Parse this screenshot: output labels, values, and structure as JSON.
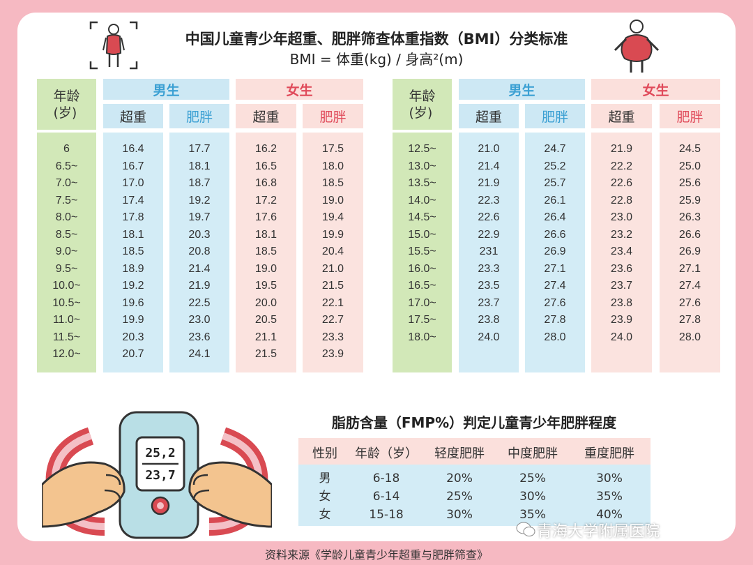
{
  "title": "中国儿童青少年超重、肥胖筛查体重指数（BMI）分类标准",
  "formula": "BMI = 体重(kg) / 身高²(m)",
  "left_table": {
    "age_header": "年龄\n(岁)",
    "groups": [
      "男生",
      "女生"
    ],
    "subs": [
      "超重",
      "肥胖",
      "超重",
      "肥胖"
    ],
    "rows": [
      [
        "6",
        "16.4",
        "17.7",
        "16.2",
        "17.5"
      ],
      [
        "6.5~",
        "16.7",
        "18.1",
        "16.5",
        "18.0"
      ],
      [
        "7.0~",
        "17.0",
        "18.7",
        "16.8",
        "18.5"
      ],
      [
        "7.5~",
        "17.4",
        "19.2",
        "17.2",
        "19.0"
      ],
      [
        "8.0~",
        "17.8",
        "19.7",
        "17.6",
        "19.4"
      ],
      [
        "8.5~",
        "18.1",
        "20.3",
        "18.1",
        "19.9"
      ],
      [
        "9.0~",
        "18.5",
        "20.8",
        "18.5",
        "20.4"
      ],
      [
        "9.5~",
        "18.9",
        "21.4",
        "19.0",
        "21.0"
      ],
      [
        "10.0~",
        "19.2",
        "21.9",
        "19.5",
        "21.5"
      ],
      [
        "10.5~",
        "19.6",
        "22.5",
        "20.0",
        "22.1"
      ],
      [
        "11.0~",
        "19.9",
        "23.0",
        "20.5",
        "22.7"
      ],
      [
        "11.5~",
        "20.3",
        "23.6",
        "21.1",
        "23.3"
      ],
      [
        "12.0~",
        "20.7",
        "24.1",
        "21.5",
        "23.9"
      ]
    ]
  },
  "right_table": {
    "age_header": "年龄\n(岁)",
    "groups": [
      "男生",
      "女生"
    ],
    "subs": [
      "超重",
      "肥胖",
      "超重",
      "肥胖"
    ],
    "rows": [
      [
        "12.5~",
        "21.0",
        "24.7",
        "21.9",
        "24.5"
      ],
      [
        "13.0~",
        "21.4",
        "25.2",
        "22.2",
        "25.0"
      ],
      [
        "13.5~",
        "21.9",
        "25.7",
        "22.6",
        "25.6"
      ],
      [
        "14.0~",
        "22.3",
        "26.1",
        "22.8",
        "25.9"
      ],
      [
        "14.5~",
        "22.6",
        "26.4",
        "23.0",
        "26.3"
      ],
      [
        "15.0~",
        "22.9",
        "26.6",
        "23.2",
        "26.6"
      ],
      [
        "15.5~",
        "231",
        "26.9",
        "23.4",
        "26.9"
      ],
      [
        "16.0~",
        "23.3",
        "27.1",
        "23.6",
        "27.1"
      ],
      [
        "16.5~",
        "23.5",
        "27.4",
        "23.7",
        "27.4"
      ],
      [
        "17.0~",
        "23.7",
        "27.6",
        "23.8",
        "27.6"
      ],
      [
        "17.5~",
        "23.8",
        "27.8",
        "23.9",
        "27.8"
      ],
      [
        "18.0~",
        "24.0",
        "28.0",
        "24.0",
        "28.0"
      ]
    ]
  },
  "fmp": {
    "title": "脂肪含量（FMP%）判定儿童青少年肥胖程度",
    "headers": [
      "性别",
      "年龄（岁）",
      "轻度肥胖",
      "中度肥胖",
      "重度肥胖"
    ],
    "rows": [
      [
        "男",
        "6-18",
        "20%",
        "25%",
        "30%"
      ],
      [
        "女",
        "6-14",
        "25%",
        "30%",
        "35%"
      ],
      [
        "女",
        "15-18",
        "30%",
        "35%",
        "40%"
      ]
    ]
  },
  "scale_display": {
    "top": "25,2",
    "bottom": "23,7"
  },
  "source": "资料来源《学龄儿童青少年超重与肥胖筛查》",
  "watermark": "青海大学附属医院",
  "colors": {
    "background": "#f6b9c2",
    "male_accent": "#3ba0d3",
    "female_accent": "#e04a5a",
    "age_column": "#d2e8b8",
    "male_column": "#d3ecf6",
    "female_column": "#fbe3df"
  },
  "icons": [
    "thin-child-icon",
    "overweight-child-icon",
    "bmi-scale-illustration",
    "wechat-icon"
  ]
}
